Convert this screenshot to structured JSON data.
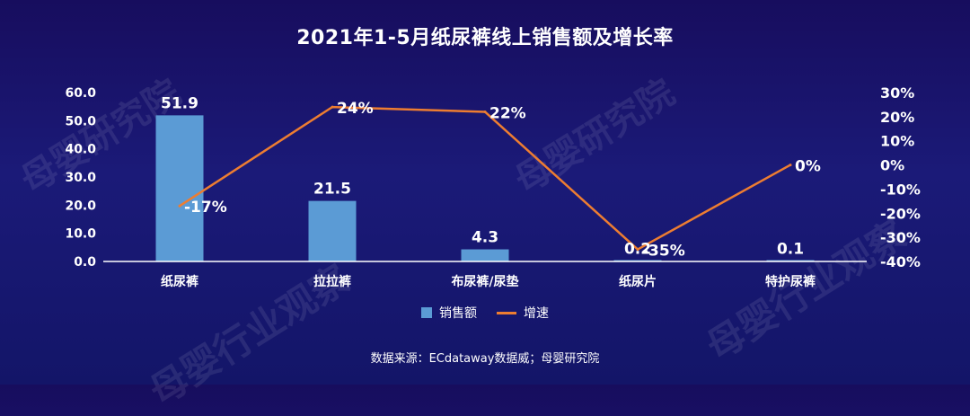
{
  "title": "2021年1-5月纸尿裤线上销售额及增长率",
  "source": "数据来源：ECdataway数据威；母婴研究院",
  "watermarks": [
    "母婴研究院",
    "母婴行业观察"
  ],
  "chart_data": {
    "type": "bar",
    "title": "2021年1-5月纸尿裤线上销售额及增长率",
    "categories": [
      "纸尿裤",
      "拉拉裤",
      "布尿裤/尿垫",
      "纸尿片",
      "特护尿裤"
    ],
    "series": [
      {
        "name": "销售额",
        "type": "bar",
        "axis": "left",
        "color": "#5b9bd5",
        "values": [
          51.9,
          21.5,
          4.3,
          0.2,
          0.1
        ],
        "labels": [
          "51.9",
          "21.5",
          "4.3",
          "0.2",
          "0.1"
        ]
      },
      {
        "name": "增速",
        "type": "line",
        "axis": "right",
        "color": "#ed7d31",
        "values": [
          -17,
          24,
          22,
          -35,
          0
        ],
        "labels": [
          "-17%",
          "24%",
          "22%",
          "-35%",
          "0%"
        ]
      }
    ],
    "y_left": {
      "ylim": [
        0,
        60
      ],
      "ticks": [
        0,
        10,
        20,
        30,
        40,
        50,
        60
      ],
      "tick_labels": [
        "0.0",
        "10.0",
        "20.0",
        "30.0",
        "40.0",
        "50.0",
        "60.0"
      ]
    },
    "y_right": {
      "ylim": [
        -40,
        30
      ],
      "ticks": [
        -40,
        -30,
        -20,
        -10,
        0,
        10,
        20,
        30
      ],
      "tick_labels": [
        "-40%",
        "-30%",
        "-20%",
        "-10%",
        "0%",
        "10%",
        "20%",
        "30%"
      ]
    },
    "grid": false,
    "legend": "bottom"
  }
}
